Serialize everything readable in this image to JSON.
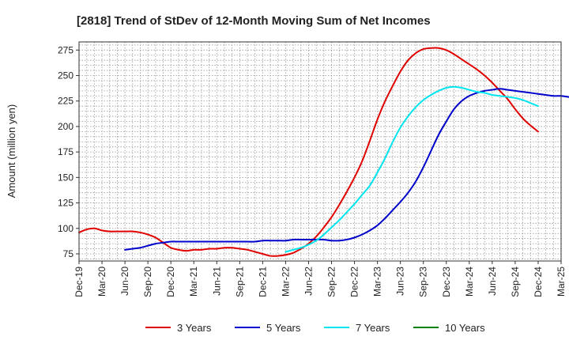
{
  "chart_data": {
    "type": "line",
    "title": "[2818]  Trend of StDev of 12-Month Moving Sum of Net Incomes",
    "xlabel": "",
    "ylabel": "Amount (million yen)",
    "ylim": [
      68,
      283
    ],
    "yticks": [
      75,
      100,
      125,
      150,
      175,
      200,
      225,
      250,
      275
    ],
    "x_tick_labels": [
      "Dec-19",
      "Mar-20",
      "Jun-20",
      "Sep-20",
      "Dec-20",
      "Mar-21",
      "Jun-21",
      "Sep-21",
      "Dec-21",
      "Mar-22",
      "Jun-22",
      "Sep-22",
      "Dec-22",
      "Mar-23",
      "Jun-23",
      "Sep-23",
      "Dec-23",
      "Mar-24",
      "Jun-24",
      "Sep-24",
      "Dec-24",
      "Mar-25"
    ],
    "grid": true,
    "legend_position": "bottom",
    "series": [
      {
        "name": "3 Years",
        "color": "#e00000",
        "start_index": 0,
        "values": [
          96,
          99,
          100,
          98,
          97,
          97,
          97,
          97,
          96,
          94,
          91,
          86,
          81,
          79,
          78,
          79,
          79,
          80,
          80,
          81,
          81,
          80,
          79,
          77,
          75,
          73,
          73,
          74,
          76,
          80,
          85,
          92,
          101,
          111,
          123,
          136,
          150,
          166,
          186,
          207,
          225,
          240,
          254,
          265,
          272,
          276,
          277,
          277,
          275,
          271,
          266,
          261,
          256,
          250,
          243,
          235,
          227,
          217,
          208,
          201,
          195
        ]
      },
      {
        "name": "5 Years",
        "color": "#0000cc",
        "start_index": 6,
        "values": [
          79,
          80,
          81,
          83,
          85,
          86,
          87,
          87,
          87,
          87,
          87,
          87,
          87,
          87,
          87,
          87,
          87,
          87,
          88,
          88,
          88,
          88,
          89,
          89,
          89,
          89,
          89,
          88,
          88,
          89,
          91,
          94,
          98,
          103,
          110,
          118,
          126,
          135,
          146,
          160,
          176,
          192,
          205,
          217,
          225,
          230,
          233,
          235,
          236,
          237,
          236,
          235,
          234,
          233,
          232,
          231,
          230,
          230,
          229,
          229,
          229,
          228,
          228
        ]
      },
      {
        "name": "7 Years",
        "color": "#00e5ee",
        "start_index": 27,
        "values": [
          77,
          79,
          81,
          84,
          88,
          94,
          101,
          108,
          116,
          124,
          133,
          142,
          155,
          169,
          185,
          199,
          210,
          219,
          226,
          231,
          235,
          238,
          239,
          238,
          236,
          234,
          233,
          231,
          230,
          229,
          228,
          226,
          223,
          220
        ]
      },
      {
        "name": "10 Years",
        "color": "#008000",
        "start_index": 0,
        "values": []
      }
    ]
  }
}
